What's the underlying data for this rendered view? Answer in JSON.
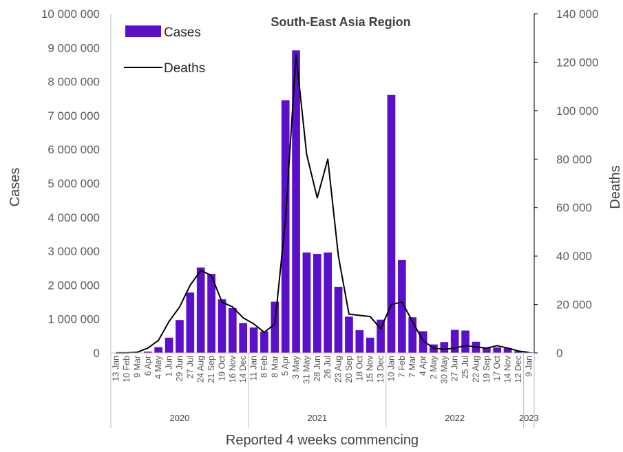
{
  "chart_data": {
    "type": "bar+line",
    "title": "South-East Asia Region",
    "xlabel": "Reported 4 weeks commencing",
    "ylabel_left": "Cases",
    "ylabel_right": "Deaths",
    "ylim_left": [
      0,
      10000000
    ],
    "ylim_right": [
      0,
      140000
    ],
    "yticks_left": [
      "0",
      "1 000 000",
      "2 000 000",
      "3 000 000",
      "4 000 000",
      "5 000 000",
      "6 000 000",
      "7 000 000",
      "8 000 000",
      "9 000 000",
      "10 000 000"
    ],
    "yticks_right": [
      "0",
      "20 000",
      "40 000",
      "60 000",
      "80 000",
      "100 000",
      "120 000",
      "140 000"
    ],
    "grid": false,
    "legend_position": "top-left",
    "categories": [
      "13 Jan",
      "10 Feb",
      "9 Mar",
      "6 Apr",
      "4 May",
      "1 Jun",
      "29 Jun",
      "27 Jul",
      "24 Aug",
      "21 Sep",
      "19 Oct",
      "16 Nov",
      "14 Dec",
      "11 Jan",
      "8 Feb",
      "8 Mar",
      "5 Apr",
      "3 May",
      "31 May",
      "28 Jun",
      "26 Jul",
      "23 Aug",
      "20 Sep",
      "18 Oct",
      "15 Nov",
      "13 Dec",
      "10 Jan",
      "7 Feb",
      "7 Mar",
      "4 Apr",
      "2 May",
      "30 May",
      "27 Jun",
      "25 Jul",
      "22 Aug",
      "19 Sep",
      "17 Oct",
      "14 Nov",
      "12 Dec",
      "9 Jan"
    ],
    "year_groups": [
      {
        "label": "2020",
        "start": 0,
        "end": 12
      },
      {
        "label": "2021",
        "start": 13,
        "end": 25
      },
      {
        "label": "2022",
        "start": 26,
        "end": 38
      },
      {
        "label": "2023",
        "start": 39,
        "end": 39
      }
    ],
    "series": [
      {
        "name": "Cases",
        "type": "bar",
        "axis": "left",
        "color": "#5b0fc8",
        "values": [
          0,
          0,
          10000,
          40000,
          170000,
          450000,
          970000,
          1780000,
          2520000,
          2330000,
          1580000,
          1320000,
          880000,
          750000,
          630000,
          1510000,
          7450000,
          8920000,
          2960000,
          2920000,
          2960000,
          1950000,
          1070000,
          670000,
          450000,
          980000,
          7610000,
          2740000,
          1050000,
          640000,
          250000,
          320000,
          680000,
          660000,
          330000,
          160000,
          160000,
          140000,
          50000,
          20000
        ]
      },
      {
        "name": "Deaths",
        "type": "line",
        "axis": "right",
        "color": "#000000",
        "values": [
          50,
          50,
          300,
          2000,
          5200,
          13000,
          19000,
          28000,
          34000,
          32000,
          21000,
          19000,
          14500,
          12000,
          8500,
          12000,
          55000,
          123000,
          82000,
          64000,
          80000,
          40000,
          16000,
          15500,
          15000,
          10000,
          20000,
          21000,
          13000,
          5000,
          2000,
          1500,
          2000,
          3000,
          2500,
          2000,
          3000,
          2000,
          800,
          200
        ]
      }
    ]
  }
}
